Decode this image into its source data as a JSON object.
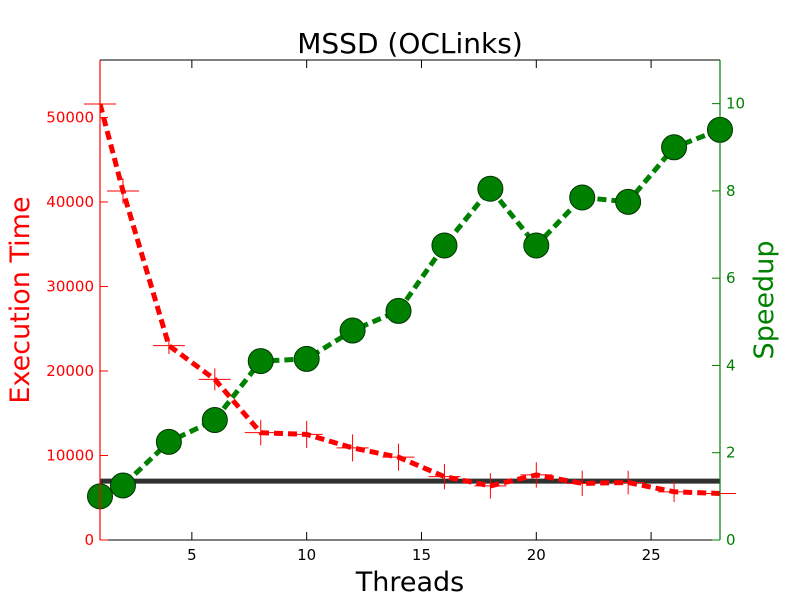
{
  "chart_data": {
    "type": "line",
    "title": "MSSD (OCLinks)",
    "xlabel": "Threads",
    "ylabel_left": "Execution Time",
    "ylabel_right": "Speedup",
    "xlim": [
      1,
      28
    ],
    "ylim_left": [
      0,
      56800
    ],
    "ylim_right": [
      0,
      11
    ],
    "x_ticks": [
      5,
      10,
      15,
      20,
      25
    ],
    "y_left_ticks": [
      0,
      10000,
      20000,
      30000,
      40000,
      50000
    ],
    "y_right_ticks": [
      0,
      2,
      4,
      6,
      8,
      10
    ],
    "grid": false,
    "colors": {
      "left_axis": "#ff0000",
      "right_axis": "#008000",
      "baseline": "#303030",
      "frame": "#000000"
    },
    "series": [
      {
        "axis": "left",
        "style": "dashed-line-with-error-bars",
        "color": "#ff0000",
        "x": [
          1,
          2,
          4,
          6,
          8,
          10,
          12,
          14,
          16,
          18,
          20,
          22,
          24,
          26,
          28
        ],
        "values": [
          51600,
          41300,
          23000,
          19000,
          12700,
          12500,
          10900,
          9800,
          7500,
          6400,
          7700,
          6700,
          6800,
          5700,
          5500
        ],
        "errors": [
          200,
          1500,
          1000,
          1300,
          1500,
          1600,
          1600,
          1600,
          1500,
          1500,
          1500,
          1500,
          1400,
          1200,
          500
        ]
      },
      {
        "axis": "right",
        "style": "dashed-line-with-markers",
        "color": "#008000",
        "x": [
          1,
          2,
          4,
          6,
          8,
          10,
          12,
          14,
          16,
          18,
          20,
          22,
          24,
          26,
          28
        ],
        "values": [
          1.0,
          1.25,
          2.25,
          2.75,
          4.1,
          4.15,
          4.8,
          5.25,
          6.75,
          8.05,
          6.75,
          7.85,
          7.75,
          9.0,
          9.4
        ]
      }
    ],
    "reference_line": {
      "axis": "right",
      "value": 1.35,
      "color": "#303030"
    }
  }
}
